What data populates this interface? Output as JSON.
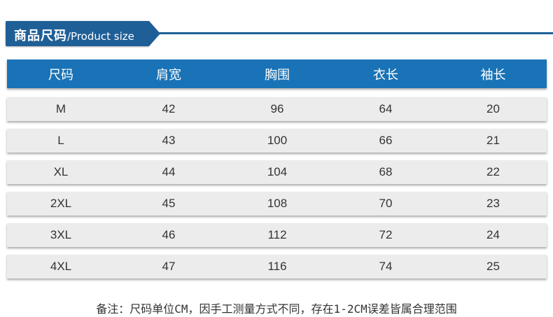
{
  "title": {
    "cn": "商品尺码",
    "en": "/Product size"
  },
  "table": {
    "headers": [
      "尺码",
      "肩宽",
      "胸围",
      "衣长",
      "袖长"
    ],
    "rows": [
      [
        "M",
        "42",
        "96",
        "64",
        "20"
      ],
      [
        "L",
        "43",
        "100",
        "66",
        "21"
      ],
      [
        "XL",
        "44",
        "104",
        "68",
        "22"
      ],
      [
        "2XL",
        "45",
        "108",
        "70",
        "23"
      ],
      [
        "3XL",
        "46",
        "112",
        "72",
        "24"
      ],
      [
        "4XL",
        "47",
        "116",
        "74",
        "25"
      ]
    ]
  },
  "note": "备注：尺码单位CM，因手工测量方式不同，存在1-2CM误差皆属合理范围",
  "colors": {
    "banner": "#1f5f97",
    "header": "#1a73b6",
    "row": "#ececec"
  }
}
